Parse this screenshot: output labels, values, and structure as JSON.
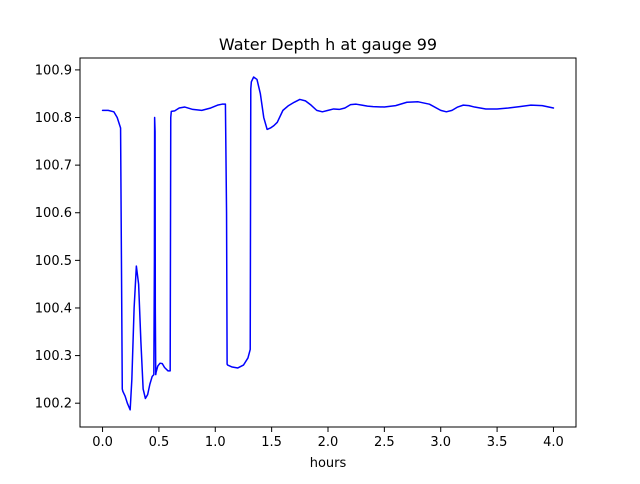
{
  "chart_data": {
    "type": "line",
    "title": "Water Depth h at gauge 99",
    "xlabel": "hours",
    "ylabel": "",
    "xlim": [
      -0.2,
      4.2
    ],
    "ylim": [
      100.15,
      100.925
    ],
    "xticks": [
      0.0,
      0.5,
      1.0,
      1.5,
      2.0,
      2.5,
      3.0,
      3.5,
      4.0
    ],
    "xtick_labels": [
      "0.0",
      "0.5",
      "1.0",
      "1.5",
      "2.0",
      "2.5",
      "3.0",
      "3.5",
      "4.0"
    ],
    "yticks": [
      100.2,
      100.3,
      100.4,
      100.5,
      100.6,
      100.7,
      100.8,
      100.9
    ],
    "ytick_labels": [
      "100.2",
      "100.3",
      "100.4",
      "100.5",
      "100.6",
      "100.7",
      "100.8",
      "100.9"
    ],
    "grid": false,
    "series": [
      {
        "name": "",
        "color": "#0000ff",
        "x": [
          0.0,
          0.05,
          0.1,
          0.13,
          0.16,
          0.175,
          0.18,
          0.2,
          0.22,
          0.245,
          0.26,
          0.28,
          0.3,
          0.32,
          0.34,
          0.36,
          0.38,
          0.4,
          0.42,
          0.44,
          0.455,
          0.46,
          0.462,
          0.466,
          0.468,
          0.472,
          0.475,
          0.49,
          0.51,
          0.53,
          0.55,
          0.58,
          0.6,
          0.605,
          0.61,
          0.64,
          0.68,
          0.73,
          0.8,
          0.88,
          0.96,
          1.02,
          1.06,
          1.09,
          1.1,
          1.105,
          1.11,
          1.15,
          1.2,
          1.25,
          1.29,
          1.31,
          1.315,
          1.32,
          1.34,
          1.37,
          1.4,
          1.43,
          1.46,
          1.49,
          1.52,
          1.55,
          1.6,
          1.65,
          1.7,
          1.75,
          1.8,
          1.85,
          1.9,
          1.95,
          2.0,
          2.05,
          2.1,
          2.15,
          2.2,
          2.25,
          2.3,
          2.35,
          2.4,
          2.5,
          2.6,
          2.7,
          2.8,
          2.9,
          3.0,
          3.05,
          3.1,
          3.15,
          3.2,
          3.25,
          3.3,
          3.4,
          3.5,
          3.6,
          3.7,
          3.8,
          3.9,
          4.0
        ],
        "y": [
          100.815,
          100.815,
          100.812,
          100.8,
          100.778,
          100.23,
          100.225,
          100.215,
          100.2,
          100.186,
          100.25,
          100.4,
          100.488,
          100.45,
          100.33,
          100.23,
          100.21,
          100.218,
          100.24,
          100.256,
          100.26,
          100.5,
          100.8,
          100.77,
          100.4,
          100.26,
          100.265,
          100.278,
          100.284,
          100.283,
          100.275,
          100.268,
          100.268,
          100.8,
          100.813,
          100.814,
          100.82,
          100.822,
          100.817,
          100.815,
          100.82,
          100.826,
          100.828,
          100.828,
          100.6,
          100.282,
          100.28,
          100.276,
          100.274,
          100.28,
          100.295,
          100.313,
          100.86,
          100.875,
          100.885,
          100.88,
          100.85,
          100.8,
          100.775,
          100.778,
          100.783,
          100.79,
          100.815,
          100.825,
          100.832,
          100.838,
          100.835,
          100.826,
          100.815,
          100.812,
          100.815,
          100.818,
          100.817,
          100.82,
          100.827,
          100.828,
          100.826,
          100.824,
          100.823,
          100.822,
          100.825,
          100.832,
          100.833,
          100.828,
          100.815,
          100.812,
          100.815,
          100.822,
          100.826,
          100.825,
          100.822,
          100.818,
          100.818,
          100.82,
          100.823,
          100.826,
          100.825,
          100.82
        ]
      }
    ]
  }
}
